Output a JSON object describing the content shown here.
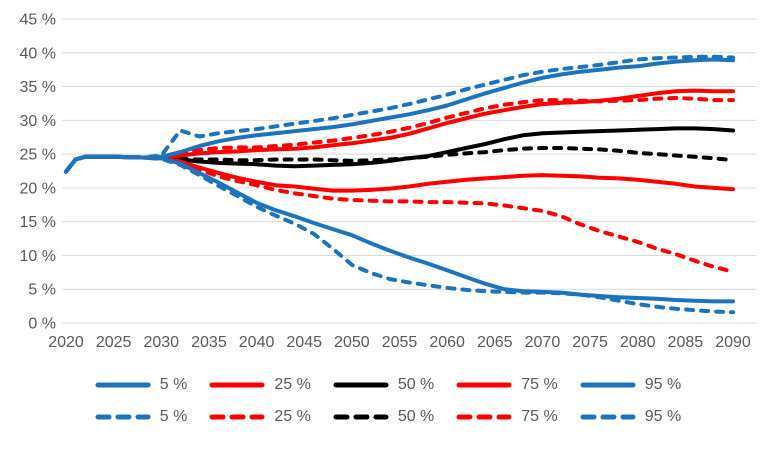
{
  "chart_data": {
    "type": "line",
    "title": "",
    "xlabel": "",
    "ylabel": "",
    "xlim": [
      2020,
      2090
    ],
    "ylim": [
      0,
      45
    ],
    "grid": "horizontal",
    "legend_position": "bottom-two-rows",
    "y_ticks": [
      "0 %",
      "5 %",
      "10 %",
      "15 %",
      "20 %",
      "25 %",
      "30 %",
      "35 %",
      "40 %",
      "45 %"
    ],
    "x_ticks": [
      "2020",
      "2025",
      "2030",
      "2035",
      "2040",
      "2045",
      "2050",
      "2055",
      "2060",
      "2065",
      "2070",
      "2075",
      "2080",
      "2085",
      "2090"
    ],
    "x": [
      2020,
      2021,
      2022,
      2025,
      2028,
      2030,
      2032,
      2034,
      2036,
      2038,
      2040,
      2042,
      2044,
      2046,
      2048,
      2050,
      2052,
      2054,
      2056,
      2058,
      2060,
      2062,
      2064,
      2066,
      2068,
      2070,
      2072,
      2074,
      2076,
      2078,
      2080,
      2082,
      2084,
      2086,
      2088,
      2090
    ],
    "series": [
      {
        "name": "5 %",
        "style": "solid",
        "color": "#1C73BE",
        "values": [
          22.4,
          24.2,
          24.6,
          24.6,
          24.5,
          24.4,
          23.6,
          22.2,
          20.8,
          19.3,
          17.8,
          16.7,
          15.8,
          14.8,
          13.9,
          13.0,
          11.8,
          10.7,
          9.7,
          8.8,
          7.8,
          6.8,
          5.8,
          5.0,
          4.7,
          4.6,
          4.5,
          4.2,
          4.0,
          3.8,
          3.7,
          3.6,
          3.4,
          3.3,
          3.2,
          3.2
        ]
      },
      {
        "name": "25 %",
        "style": "solid",
        "color": "#FF0000",
        "values": [
          22.4,
          24.2,
          24.6,
          24.6,
          24.5,
          24.4,
          23.9,
          23.0,
          22.2,
          21.5,
          20.9,
          20.4,
          20.2,
          19.9,
          19.6,
          19.6,
          19.7,
          19.9,
          20.2,
          20.6,
          20.9,
          21.2,
          21.4,
          21.6,
          21.8,
          21.9,
          21.8,
          21.7,
          21.5,
          21.4,
          21.2,
          20.9,
          20.6,
          20.2,
          20.0,
          19.8
        ]
      },
      {
        "name": "50 %",
        "style": "solid",
        "color": "#000000",
        "values": [
          22.4,
          24.2,
          24.6,
          24.6,
          24.5,
          24.4,
          24.2,
          23.9,
          23.7,
          23.6,
          23.5,
          23.3,
          23.2,
          23.3,
          23.4,
          23.5,
          23.7,
          24.0,
          24.4,
          24.7,
          25.3,
          25.9,
          26.5,
          27.2,
          27.8,
          28.1,
          28.2,
          28.3,
          28.4,
          28.5,
          28.6,
          28.7,
          28.8,
          28.8,
          28.7,
          28.5
        ]
      },
      {
        "name": "75 %",
        "style": "solid",
        "color": "#FF0000",
        "values": [
          22.4,
          24.2,
          24.6,
          24.6,
          24.5,
          24.5,
          24.8,
          25.1,
          25.3,
          25.4,
          25.6,
          25.7,
          25.8,
          26.0,
          26.3,
          26.6,
          27.0,
          27.4,
          28.0,
          28.8,
          29.6,
          30.3,
          31.0,
          31.5,
          32.0,
          32.4,
          32.6,
          32.7,
          32.9,
          33.2,
          33.6,
          34.0,
          34.3,
          34.4,
          34.3,
          34.3
        ]
      },
      {
        "name": "95 %",
        "style": "solid",
        "color": "#1C73BE",
        "values": [
          22.4,
          24.2,
          24.6,
          24.6,
          24.5,
          24.6,
          25.3,
          26.2,
          26.9,
          27.4,
          27.8,
          28.1,
          28.4,
          28.7,
          29.0,
          29.4,
          29.9,
          30.4,
          30.9,
          31.5,
          32.2,
          33.1,
          34.0,
          34.8,
          35.6,
          36.3,
          36.8,
          37.2,
          37.5,
          37.8,
          38.0,
          38.4,
          38.7,
          38.9,
          39.0,
          38.9
        ]
      },
      {
        "name": "5 %",
        "style": "dashed",
        "color": "#1C73BE",
        "values": [
          22.4,
          24.2,
          24.6,
          24.6,
          24.5,
          24.3,
          23.4,
          21.9,
          20.3,
          18.8,
          17.2,
          15.9,
          14.7,
          13.2,
          11.0,
          8.6,
          7.4,
          6.5,
          6.0,
          5.6,
          5.2,
          4.9,
          4.7,
          4.6,
          4.5,
          4.5,
          4.4,
          4.2,
          3.8,
          3.3,
          2.8,
          2.4,
          2.1,
          1.9,
          1.7,
          1.6
        ]
      },
      {
        "name": "25 %",
        "style": "dashed",
        "color": "#FF0000",
        "values": [
          22.4,
          24.2,
          24.6,
          24.6,
          24.5,
          24.3,
          23.7,
          22.7,
          21.7,
          21.0,
          20.4,
          19.7,
          19.2,
          18.8,
          18.4,
          18.2,
          18.1,
          18.0,
          18.0,
          17.9,
          17.9,
          17.8,
          17.7,
          17.4,
          17.0,
          16.6,
          15.8,
          14.6,
          13.6,
          12.8,
          12.0,
          11.0,
          10.2,
          9.2,
          8.3,
          7.6
        ]
      },
      {
        "name": "50 %",
        "style": "dashed",
        "color": "#000000",
        "values": [
          22.4,
          24.2,
          24.6,
          24.6,
          24.5,
          24.4,
          24.3,
          24.2,
          24.2,
          24.1,
          24.1,
          24.2,
          24.2,
          24.2,
          24.1,
          24.0,
          24.1,
          24.2,
          24.4,
          24.6,
          24.9,
          25.1,
          25.3,
          25.6,
          25.8,
          25.9,
          25.9,
          25.8,
          25.7,
          25.5,
          25.2,
          25.0,
          24.8,
          24.6,
          24.4,
          24.1
        ]
      },
      {
        "name": "75 %",
        "style": "dashed",
        "color": "#FF0000",
        "values": [
          22.4,
          24.2,
          24.6,
          24.6,
          24.5,
          24.6,
          25.2,
          25.6,
          25.9,
          26.0,
          26.0,
          26.2,
          26.4,
          26.7,
          27.0,
          27.4,
          27.8,
          28.3,
          28.9,
          29.6,
          30.4,
          31.1,
          31.8,
          32.3,
          32.7,
          33.0,
          33.0,
          32.9,
          32.8,
          32.9,
          33.0,
          33.2,
          33.3,
          33.2,
          33.0,
          33.0
        ]
      },
      {
        "name": "95 %",
        "style": "dashed",
        "color": "#1C73BE",
        "values": [
          22.4,
          24.2,
          24.6,
          24.6,
          24.5,
          24.8,
          28.5,
          27.6,
          28.1,
          28.4,
          28.7,
          29.1,
          29.5,
          29.9,
          30.3,
          30.8,
          31.3,
          31.8,
          32.4,
          33.1,
          33.8,
          34.6,
          35.3,
          36.0,
          36.7,
          37.2,
          37.6,
          37.9,
          38.2,
          38.6,
          39.0,
          39.2,
          39.3,
          39.4,
          39.4,
          39.3
        ]
      }
    ],
    "legend_rows": [
      [
        "5 %",
        "25 %",
        "50 %",
        "75 %",
        "95 %"
      ],
      [
        "5 %",
        "25 %",
        "50 %",
        "75 %",
        "95 %"
      ]
    ]
  },
  "colors": {
    "blue": "#1C73BE",
    "red": "#FF0000",
    "black": "#000000",
    "gridline": "#D9D9D9",
    "axis_text": "#595959",
    "background": "#FFFFFF"
  }
}
